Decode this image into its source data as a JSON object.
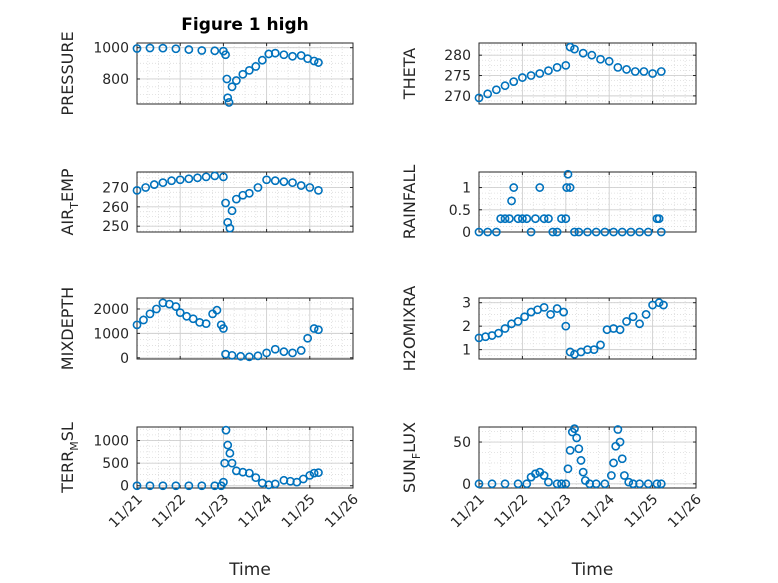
{
  "figure_title": "Figure 1 high",
  "colors": {
    "marker": "#0072BD",
    "axes": "#262626",
    "grid": "#dcdcdc",
    "background": "#ffffff"
  },
  "chart_data": [
    {
      "type": "scatter",
      "panel": "top-left",
      "ylabel": "PRESSURE",
      "xlabel": "",
      "ylim": [
        640,
        1030
      ],
      "yticks": [
        "800",
        "1000"
      ],
      "ytick_values": [
        800,
        1000
      ],
      "xlim": [
        "11/21",
        "11/26"
      ],
      "xtick_labels": [],
      "grid": true,
      "x": [
        21.0,
        21.3,
        21.6,
        21.9,
        22.2,
        22.5,
        22.8,
        23.0,
        23.05,
        23.08,
        23.1,
        23.13,
        23.2,
        23.3,
        23.45,
        23.6,
        23.75,
        23.9,
        24.05,
        24.2,
        24.4,
        24.6,
        24.8,
        24.95,
        25.1,
        25.2
      ],
      "y": [
        995,
        998,
        997,
        993,
        988,
        982,
        980,
        978,
        955,
        800,
        680,
        650,
        750,
        790,
        830,
        855,
        880,
        920,
        960,
        965,
        955,
        945,
        950,
        930,
        915,
        905
      ]
    },
    {
      "type": "scatter",
      "panel": "top-right",
      "ylabel": "THETA",
      "xlabel": "",
      "ylim": [
        268,
        283
      ],
      "yticks": [
        "270",
        "275",
        "280"
      ],
      "ytick_values": [
        270,
        275,
        280
      ],
      "xlim": [
        "11/21",
        "11/26"
      ],
      "xtick_labels": [],
      "grid": true,
      "x": [
        21.0,
        21.2,
        21.4,
        21.6,
        21.8,
        22.0,
        22.2,
        22.4,
        22.6,
        22.8,
        23.0,
        23.1,
        23.2,
        23.4,
        23.6,
        23.8,
        24.0,
        24.2,
        24.4,
        24.6,
        24.8,
        25.0,
        25.2
      ],
      "y": [
        269.5,
        270.5,
        271.5,
        272.5,
        273.5,
        274.5,
        275,
        275.5,
        276.2,
        277,
        277.5,
        282,
        281.5,
        280.5,
        280,
        279,
        278.5,
        277,
        276.5,
        276,
        276,
        275.5,
        276
      ]
    },
    {
      "type": "scatter",
      "panel": "mid-upper-left",
      "ylabel": "AIR_TEMP",
      "xlabel": "",
      "ylim": [
        247,
        278
      ],
      "yticks": [
        "250",
        "260",
        "270"
      ],
      "ytick_values": [
        250,
        260,
        270
      ],
      "xlim": [
        "11/21",
        "11/26"
      ],
      "xtick_labels": [],
      "grid": true,
      "x": [
        21.0,
        21.2,
        21.4,
        21.6,
        21.8,
        22.0,
        22.2,
        22.4,
        22.6,
        22.8,
        23.0,
        23.05,
        23.1,
        23.15,
        23.2,
        23.3,
        23.45,
        23.6,
        23.8,
        24.0,
        24.2,
        24.4,
        24.6,
        24.8,
        25.0,
        25.2
      ],
      "y": [
        268.5,
        270,
        271.5,
        272.5,
        273.5,
        274,
        274.5,
        275,
        275.5,
        276,
        275.5,
        262,
        252,
        249,
        258,
        264,
        266,
        267,
        270,
        274,
        273.5,
        273,
        272.5,
        271,
        270,
        268.5
      ]
    },
    {
      "type": "scatter",
      "panel": "mid-upper-right",
      "ylabel": "RAINFALL",
      "xlabel": "",
      "ylim": [
        0,
        1.35
      ],
      "yticks": [
        "0",
        "0.5",
        "1"
      ],
      "ytick_values": [
        0,
        0.5,
        1
      ],
      "xlim": [
        "11/21",
        "11/26"
      ],
      "xtick_labels": [],
      "grid": true,
      "x": [
        21.0,
        21.2,
        21.4,
        21.5,
        21.6,
        21.7,
        21.75,
        21.8,
        21.9,
        22.0,
        22.1,
        22.2,
        22.3,
        22.4,
        22.5,
        22.6,
        22.7,
        22.8,
        22.9,
        23.0,
        23.02,
        23.05,
        23.1,
        23.2,
        23.3,
        23.5,
        23.7,
        23.9,
        24.1,
        24.3,
        24.5,
        24.7,
        24.9,
        25.1,
        25.15,
        25.2
      ],
      "y": [
        0,
        0,
        0,
        0.3,
        0.3,
        0.3,
        0.7,
        1.0,
        0.3,
        0.3,
        0.3,
        0,
        0.3,
        1.0,
        0.3,
        0.3,
        0,
        0,
        0.3,
        0.3,
        1.0,
        1.3,
        1.0,
        0,
        0,
        0,
        0,
        0,
        0,
        0,
        0,
        0,
        0,
        0.3,
        0.3,
        0
      ]
    },
    {
      "type": "scatter",
      "panel": "mid-lower-left",
      "ylabel": "MIXDEPTH",
      "xlabel": "",
      "ylim": [
        -50,
        2450
      ],
      "yticks": [
        "0",
        "1000",
        "2000"
      ],
      "ytick_values": [
        0,
        1000,
        2000
      ],
      "xlim": [
        "11/21",
        "11/26"
      ],
      "xtick_labels": [],
      "grid": true,
      "x": [
        21.0,
        21.15,
        21.3,
        21.45,
        21.6,
        21.75,
        21.9,
        22.0,
        22.15,
        22.3,
        22.45,
        22.6,
        22.75,
        22.85,
        22.95,
        23.0,
        23.05,
        23.2,
        23.4,
        23.6,
        23.8,
        24.0,
        24.2,
        24.4,
        24.6,
        24.8,
        24.95,
        25.1,
        25.2
      ],
      "y": [
        1350,
        1550,
        1800,
        2000,
        2250,
        2200,
        2100,
        1850,
        1700,
        1600,
        1450,
        1400,
        1800,
        1950,
        1350,
        1200,
        150,
        100,
        60,
        40,
        80,
        200,
        350,
        250,
        200,
        300,
        800,
        1200,
        1150
      ]
    },
    {
      "type": "scatter",
      "panel": "mid-lower-right",
      "ylabel": "H2OMIXRA",
      "xlabel": "",
      "ylim": [
        0.6,
        3.2
      ],
      "yticks": [
        "1",
        "2",
        "3"
      ],
      "ytick_values": [
        1,
        2,
        3
      ],
      "xlim": [
        "11/21",
        "11/26"
      ],
      "xtick_labels": [],
      "grid": true,
      "x": [
        21.0,
        21.15,
        21.3,
        21.45,
        21.6,
        21.75,
        21.9,
        22.05,
        22.2,
        22.35,
        22.5,
        22.65,
        22.8,
        22.95,
        23.0,
        23.1,
        23.2,
        23.35,
        23.5,
        23.65,
        23.8,
        23.95,
        24.1,
        24.25,
        24.4,
        24.55,
        24.7,
        24.85,
        25.0,
        25.15,
        25.25
      ],
      "y": [
        1.5,
        1.55,
        1.6,
        1.7,
        1.9,
        2.1,
        2.2,
        2.4,
        2.6,
        2.7,
        2.8,
        2.5,
        2.75,
        2.6,
        2.0,
        0.9,
        0.8,
        0.9,
        1.0,
        1.0,
        1.2,
        1.85,
        1.9,
        1.85,
        2.2,
        2.4,
        2.1,
        2.5,
        2.9,
        3.0,
        2.9
      ]
    },
    {
      "type": "scatter",
      "panel": "bottom-left",
      "ylabel": "TERR_MSL",
      "xlabel": "Time",
      "ylim": [
        -50,
        1300
      ],
      "yticks": [
        "0",
        "500",
        "1000"
      ],
      "ytick_values": [
        0,
        500,
        1000
      ],
      "xlim": [
        "11/21",
        "11/26"
      ],
      "xtick_labels": [
        "11/21",
        "11/22",
        "11/23",
        "11/24",
        "11/25",
        "11/26"
      ],
      "grid": true,
      "x": [
        21.0,
        21.3,
        21.6,
        21.9,
        22.2,
        22.5,
        22.8,
        22.95,
        23.0,
        23.03,
        23.06,
        23.1,
        23.15,
        23.2,
        23.3,
        23.45,
        23.6,
        23.75,
        23.9,
        24.05,
        24.2,
        24.4,
        24.55,
        24.7,
        24.85,
        25.0,
        25.1,
        25.2
      ],
      "y": [
        0,
        0,
        0,
        0,
        0,
        0,
        0,
        0,
        80,
        500,
        1230,
        900,
        720,
        500,
        330,
        300,
        280,
        180,
        60,
        20,
        40,
        120,
        100,
        80,
        150,
        230,
        280,
        290
      ]
    },
    {
      "type": "scatter",
      "panel": "bottom-right",
      "ylabel": "SUN_FLUX",
      "xlabel": "Time",
      "ylim": [
        -5,
        68
      ],
      "yticks": [
        "0",
        "50"
      ],
      "ytick_values": [
        0,
        50
      ],
      "xlim": [
        "11/21",
        "11/26"
      ],
      "xtick_labels": [
        "11/21",
        "11/22",
        "11/23",
        "11/24",
        "11/25",
        "11/26"
      ],
      "grid": true,
      "x": [
        21.0,
        21.3,
        21.6,
        21.9,
        22.1,
        22.2,
        22.3,
        22.4,
        22.5,
        22.6,
        22.8,
        22.9,
        23.0,
        23.05,
        23.1,
        23.15,
        23.2,
        23.25,
        23.3,
        23.35,
        23.4,
        23.45,
        23.55,
        23.7,
        23.9,
        24.05,
        24.1,
        24.15,
        24.2,
        24.25,
        24.3,
        24.35,
        24.45,
        24.55,
        24.7,
        24.9,
        25.1,
        25.2
      ],
      "y": [
        0,
        0,
        0,
        0,
        0,
        8,
        12,
        14,
        10,
        2,
        0,
        0,
        0,
        18,
        40,
        62,
        66,
        55,
        42,
        28,
        14,
        4,
        0,
        0,
        0,
        10,
        25,
        45,
        65,
        50,
        30,
        10,
        2,
        0,
        0,
        0,
        0,
        0
      ]
    }
  ]
}
